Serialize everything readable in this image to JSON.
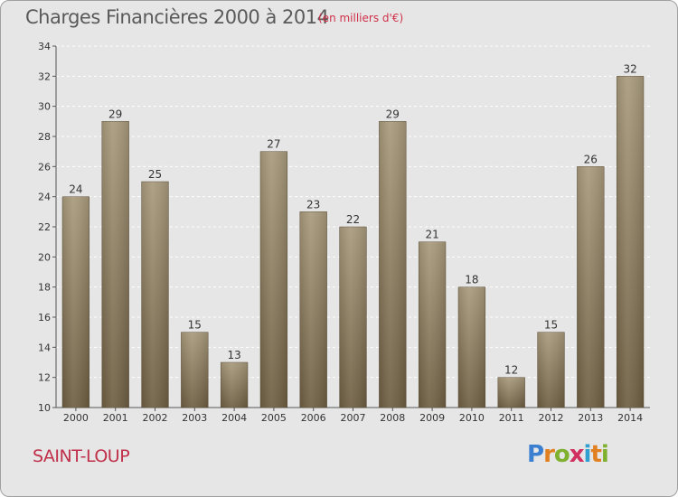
{
  "header": {
    "title": "Charges Financières 2000 à 2014",
    "subtitle": "(en milliers d'€)"
  },
  "footer": {
    "city": "SAINT-LOUP",
    "logo": "Proxiti"
  },
  "colors": {
    "background": "#e6e6e6",
    "bar_top": "#a89a7c",
    "bar_bottom": "#6e5e42",
    "grid": "#ffffff",
    "title": "#5a5a5a",
    "city": "#c0304a"
  },
  "chart_data": {
    "type": "bar",
    "title": "Charges Financières 2000 à 2014",
    "subtitle": "(en milliers d'€)",
    "categories": [
      "2000",
      "2001",
      "2002",
      "2003",
      "2004",
      "2005",
      "2006",
      "2007",
      "2008",
      "2009",
      "2010",
      "2011",
      "2012",
      "2013",
      "2014"
    ],
    "values": [
      24,
      29,
      25,
      15,
      13,
      27,
      23,
      22,
      29,
      21,
      18,
      12,
      15,
      26,
      32
    ],
    "ylim": [
      10,
      34
    ],
    "yticks": [
      10,
      12,
      14,
      16,
      18,
      20,
      22,
      24,
      26,
      28,
      30,
      32,
      34
    ],
    "xlabel": "",
    "ylabel": "",
    "grid": true,
    "data_labels": true
  }
}
